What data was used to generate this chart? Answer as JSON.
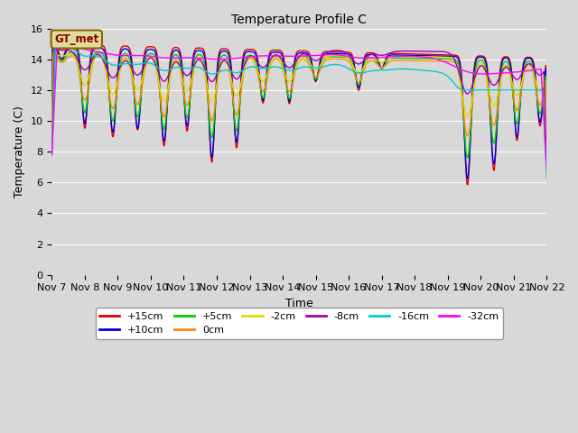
{
  "title": "Temperature Profile C",
  "xlabel": "Time",
  "ylabel": "Temperature (C)",
  "ylim": [
    0,
    16
  ],
  "yticks": [
    0,
    2,
    4,
    6,
    8,
    10,
    12,
    14,
    16
  ],
  "plot_bg_color": "#d8d8d8",
  "fig_bg_color": "#d8d8d8",
  "grid_color": "#ffffff",
  "series": [
    {
      "label": "+15cm",
      "color": "#dd0000",
      "lw": 1.0
    },
    {
      "label": "+10cm",
      "color": "#0000dd",
      "lw": 1.0
    },
    {
      "label": "+5cm",
      "color": "#00cc00",
      "lw": 1.0
    },
    {
      "label": "0cm",
      "color": "#ff8800",
      "lw": 1.0
    },
    {
      "label": "-2cm",
      "color": "#dddd00",
      "lw": 1.0
    },
    {
      "label": "-8cm",
      "color": "#aa00aa",
      "lw": 1.0
    },
    {
      "label": "-16cm",
      "color": "#00cccc",
      "lw": 1.0
    },
    {
      "label": "-32cm",
      "color": "#ff00ff",
      "lw": 1.0
    }
  ],
  "legend_box_facecolor": "#dddd99",
  "legend_box_edgecolor": "#886600",
  "legend_text": "GT_met",
  "xtick_labels": [
    "Nov 7",
    "Nov 8",
    "Nov 9",
    "Nov 10",
    "Nov 11",
    "Nov 12",
    "Nov 13",
    "Nov 14",
    "Nov 15",
    "Nov 16",
    "Nov 17",
    "Nov 18",
    "Nov 19",
    "Nov 20",
    "Nov 21",
    "Nov 22"
  ]
}
